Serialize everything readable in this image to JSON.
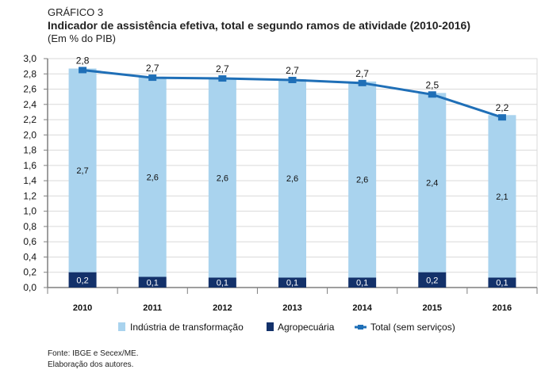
{
  "header": {
    "label": "GRÁFICO 3",
    "title": "Indicador de assistência efetiva, total e segundo ramos de atividade (2010-2016)",
    "unit": "(Em % do PIB)"
  },
  "footer": {
    "source": "Fonte: IBGE e Secex/ME.",
    "credit": "Elaboração dos autores."
  },
  "colors": {
    "industria": "#a9d3ee",
    "agro": "#13316a",
    "total": "#1f6fb7",
    "grid": "#d9d9d9",
    "axis": "#7f7f7f"
  },
  "chart_data": {
    "type": "bar",
    "stacked": true,
    "title": "Indicador de assistência efetiva, total e segundo ramos de atividade (2010-2016)",
    "subtitle": "(Em % do PIB)",
    "xlabel": "",
    "ylabel": "",
    "ylim": [
      0,
      3.0
    ],
    "yticks": [
      "0,0",
      "0,2",
      "0,4",
      "0,6",
      "0,8",
      "1,0",
      "1,2",
      "1,4",
      "1,6",
      "1,8",
      "2,0",
      "2,2",
      "2,4",
      "2,6",
      "2,8",
      "3,0"
    ],
    "grid": true,
    "legend_position": "bottom",
    "categories": [
      "2010",
      "2011",
      "2012",
      "2013",
      "2014",
      "2015",
      "2016"
    ],
    "series": [
      {
        "name": "Agropecuária",
        "type": "bar",
        "values": [
          0.2,
          0.14,
          0.13,
          0.13,
          0.13,
          0.2,
          0.13
        ],
        "labels": [
          "0,2",
          "0,1",
          "0,1",
          "0,1",
          "0,1",
          "0,2",
          "0,1"
        ]
      },
      {
        "name": "Indústria de transformação",
        "type": "bar",
        "values": [
          2.67,
          2.62,
          2.62,
          2.6,
          2.57,
          2.35,
          2.13
        ],
        "labels": [
          "2,7",
          "2,6",
          "2,6",
          "2,6",
          "2,6",
          "2,4",
          "2,1"
        ]
      },
      {
        "name": "Total (sem serviços)",
        "type": "line",
        "values": [
          2.85,
          2.75,
          2.74,
          2.72,
          2.68,
          2.53,
          2.23
        ],
        "labels": [
          "2,8",
          "2,7",
          "2,7",
          "2,7",
          "2,7",
          "2,5",
          "2,2"
        ]
      }
    ],
    "legend": [
      "Indústria de transformação",
      "Agropecuária",
      "Total (sem serviços)"
    ]
  }
}
